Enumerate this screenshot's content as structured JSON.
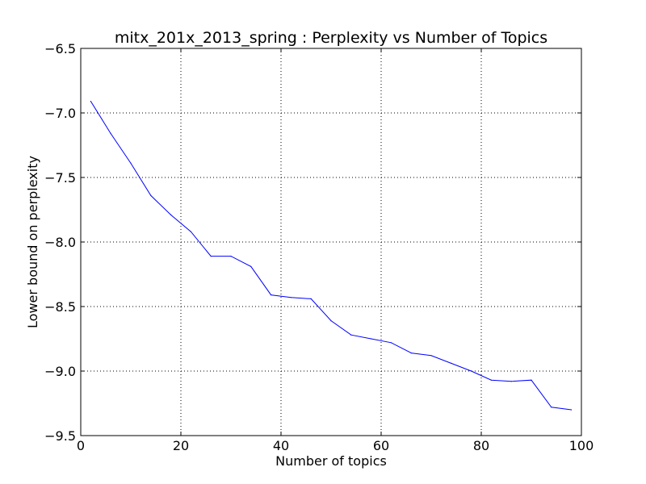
{
  "chart_data": {
    "type": "line",
    "title": "mitx_201x_2013_spring : Perplexity vs Number of Topics",
    "xlabel": "Number of topics",
    "ylabel": "Lower bound on perplexity",
    "xlim": [
      0,
      100
    ],
    "ylim": [
      -9.5,
      -6.5
    ],
    "xticks": [
      0,
      20,
      40,
      60,
      80,
      100
    ],
    "xtick_labels": [
      "0",
      "20",
      "40",
      "60",
      "80",
      "100"
    ],
    "yticks": [
      -6.5,
      -7.0,
      -7.5,
      -8.0,
      -8.5,
      -9.0,
      -9.5
    ],
    "ytick_labels": [
      "−6.5",
      "−7.0",
      "−7.5",
      "−8.0",
      "−8.5",
      "−9.0",
      "−9.5"
    ],
    "grid": true,
    "line_color": "#0000ff",
    "series": [
      {
        "x": [
          2,
          6,
          10,
          14,
          18,
          22,
          26,
          30,
          34,
          38,
          42,
          46,
          50,
          54,
          58,
          62,
          66,
          70,
          74,
          78,
          82,
          86,
          90,
          94,
          98
        ],
        "values": [
          -6.91,
          -7.16,
          -7.39,
          -7.64,
          -7.79,
          -7.92,
          -8.11,
          -8.11,
          -8.19,
          -8.41,
          -8.43,
          -8.44,
          -8.61,
          -8.72,
          -8.75,
          -8.78,
          -8.86,
          -8.88,
          -8.94,
          -9.0,
          -9.07,
          -9.08,
          -9.07,
          -9.28,
          -9.3
        ]
      }
    ]
  }
}
